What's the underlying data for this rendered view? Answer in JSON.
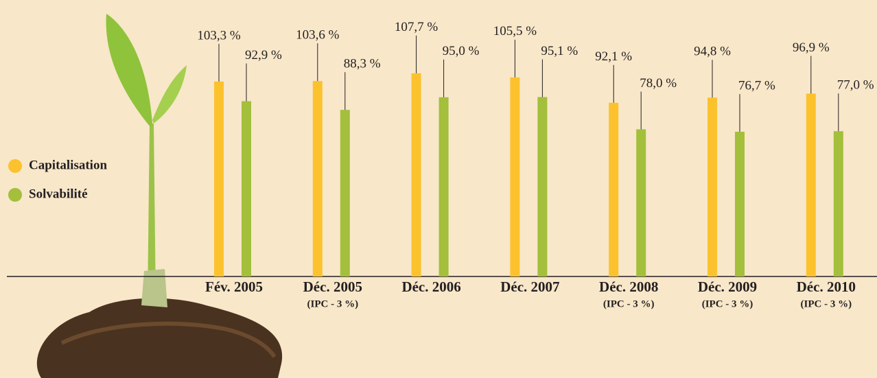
{
  "chart_data": {
    "type": "bar",
    "categories": [
      "Fév. 2005",
      "Déc. 2005",
      "Déc. 2006",
      "Déc. 2007",
      "Déc. 2008",
      "Déc. 2009",
      "Déc. 2010"
    ],
    "category_notes": [
      null,
      "(IPC - 3 %)",
      null,
      null,
      "(IPC - 3 %)",
      "(IPC - 3 %)",
      "(IPC - 3 %)"
    ],
    "series": [
      {
        "name": "Capitalisation",
        "color": "#fcc22e",
        "values": [
          103.3,
          103.6,
          107.7,
          105.5,
          92.1,
          94.8,
          96.9
        ],
        "value_labels": [
          "103,3 %",
          "103,6 %",
          "107,7 %",
          "105,5 %",
          "92,1 %",
          "94,8 %",
          "96,9 %"
        ]
      },
      {
        "name": "Solvabilité",
        "color": "#a3bf3b",
        "values": [
          92.9,
          88.3,
          95.0,
          95.1,
          78.0,
          76.7,
          77.0
        ],
        "value_labels": [
          "92,9 %",
          "88,3 %",
          "95,0 %",
          "95,1 %",
          "78,0 %",
          "76,7 %",
          "77,0 %"
        ]
      }
    ],
    "ylim": [
      0,
      140
    ]
  }
}
